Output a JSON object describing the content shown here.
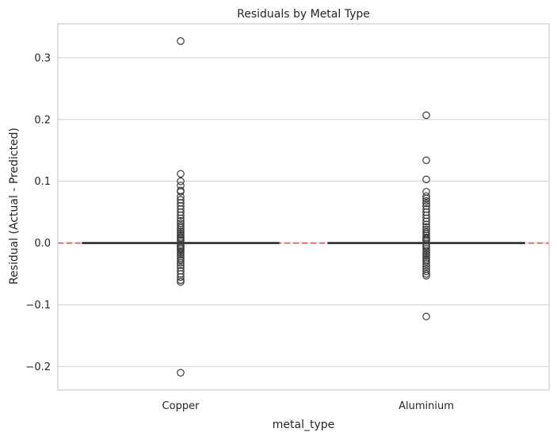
{
  "chart_data": {
    "type": "box",
    "title": "Residuals by Metal Type",
    "xlabel": "metal_type",
    "ylabel": "Residual (Actual - Predicted)",
    "categories": [
      "Copper",
      "Aluminium"
    ],
    "ylim": [
      -0.238,
      0.355
    ],
    "yticks": [
      -0.2,
      -0.1,
      0.0,
      0.1,
      0.2,
      0.3
    ],
    "ytick_labels": [
      "−0.2",
      "−0.1",
      "0.0",
      "0.1",
      "0.2",
      "0.3"
    ],
    "grid": true,
    "reference_line": {
      "y": 0.0,
      "style": "dashed",
      "color": "#c44e52"
    },
    "colors": {
      "box_edge": "#3a3a3a",
      "grid": "#d0d0d0",
      "frame": "#cccccc"
    },
    "series": [
      {
        "category": "Copper",
        "q1": -0.001,
        "median": 0.0,
        "q3": 0.001,
        "whisker_low": -0.002,
        "whisker_high": 0.002,
        "outliers": [
          0.327,
          0.112,
          0.1,
          0.093,
          0.085,
          0.083,
          0.075,
          0.07,
          0.065,
          0.06,
          0.055,
          0.05,
          0.045,
          0.04,
          0.036,
          0.032,
          0.028,
          0.025,
          0.022,
          0.019,
          0.016,
          0.013,
          0.01,
          0.008,
          0.006,
          0.004,
          -0.004,
          -0.006,
          -0.008,
          -0.01,
          -0.013,
          -0.016,
          -0.019,
          -0.022,
          -0.025,
          -0.028,
          -0.032,
          -0.036,
          -0.04,
          -0.045,
          -0.05,
          -0.055,
          -0.06,
          -0.063,
          -0.21
        ]
      },
      {
        "category": "Aluminium",
        "q1": -0.001,
        "median": 0.0,
        "q3": 0.001,
        "whisker_low": -0.002,
        "whisker_high": 0.002,
        "outliers": [
          0.207,
          0.134,
          0.103,
          0.083,
          0.076,
          0.072,
          0.068,
          0.064,
          0.06,
          0.055,
          0.05,
          0.045,
          0.04,
          0.035,
          0.03,
          0.026,
          0.022,
          0.018,
          0.015,
          0.012,
          0.009,
          0.007,
          0.005,
          0.004,
          -0.004,
          -0.006,
          -0.009,
          -0.012,
          -0.015,
          -0.018,
          -0.021,
          -0.024,
          -0.027,
          -0.03,
          -0.034,
          -0.038,
          -0.042,
          -0.046,
          -0.05,
          -0.053,
          -0.119
        ]
      }
    ]
  }
}
